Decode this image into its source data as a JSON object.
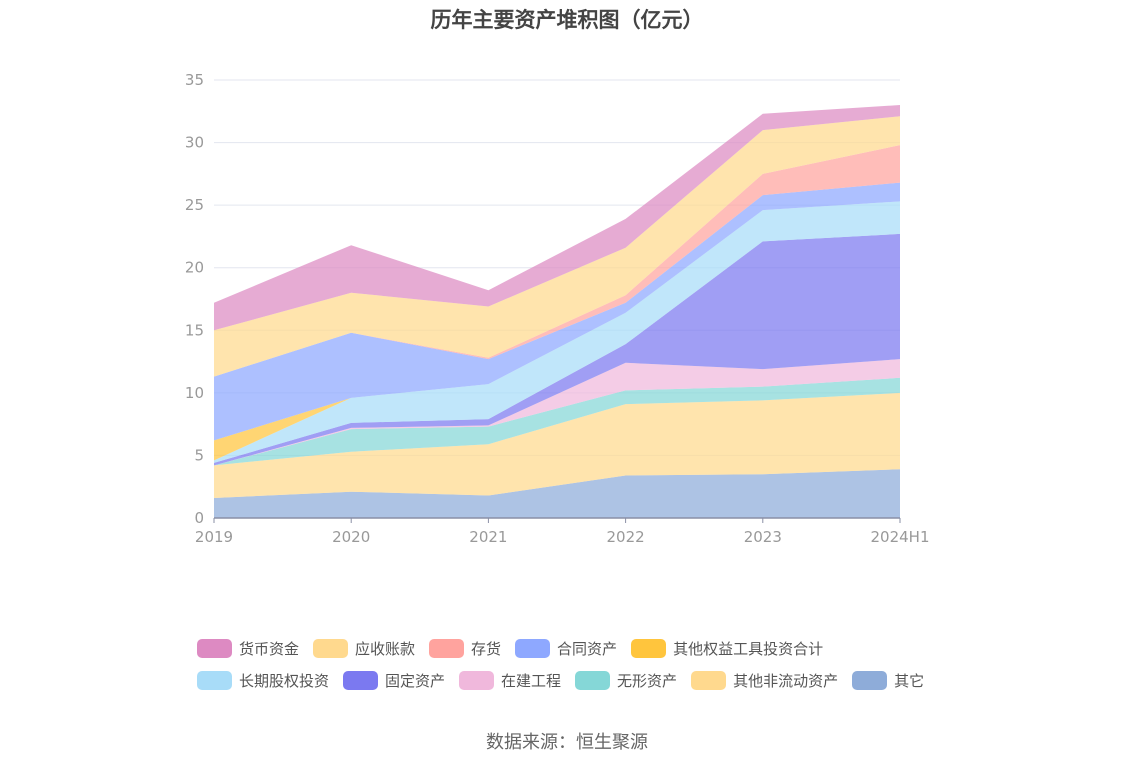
{
  "chart_data": {
    "type": "area",
    "stacked": true,
    "title": "历年主要资产堆积图（亿元）",
    "categories": [
      "2019",
      "2020",
      "2021",
      "2022",
      "2023",
      "2024H1"
    ],
    "ylim": [
      0,
      35
    ],
    "yticks": [
      0,
      5,
      10,
      15,
      20,
      25,
      30,
      35
    ],
    "grid": true,
    "legend_position": "bottom",
    "series": [
      {
        "name": "其它",
        "color": "#8eacd9",
        "values": [
          1.6,
          2.1,
          1.8,
          3.4,
          3.5,
          3.9
        ]
      },
      {
        "name": "其他非流动资产",
        "color": "#ffd98e",
        "values": [
          2.6,
          3.2,
          4.1,
          5.7,
          5.9,
          6.1
        ]
      },
      {
        "name": "无形资产",
        "color": "#85d7d7",
        "values": [
          0.0,
          1.8,
          1.4,
          1.1,
          1.1,
          1.2
        ]
      },
      {
        "name": "在建工程",
        "color": "#f0b8dc",
        "values": [
          0.0,
          0.1,
          0.1,
          2.2,
          1.4,
          1.5
        ]
      },
      {
        "name": "固定资产",
        "color": "#7b79f0",
        "values": [
          0.2,
          0.4,
          0.5,
          1.5,
          10.2,
          10.0
        ]
      },
      {
        "name": "长期股权投资",
        "color": "#a8dcf8",
        "values": [
          0.2,
          2.0,
          2.8,
          2.5,
          2.5,
          2.6
        ]
      },
      {
        "name": "其他权益工具投资合计",
        "color": "#ffc53d",
        "values": [
          1.6,
          0.0,
          0.0,
          0.0,
          0.0,
          0.0
        ]
      },
      {
        "name": "合同资产",
        "color": "#8ea8ff",
        "values": [
          5.1,
          5.2,
          2.0,
          0.8,
          1.2,
          1.5
        ]
      },
      {
        "name": "存货",
        "color": "#ffa39e",
        "values": [
          0.0,
          0.0,
          0.1,
          0.6,
          1.7,
          3.0
        ]
      },
      {
        "name": "应收账款",
        "color": "#ffd98e",
        "values": [
          3.7,
          3.2,
          4.1,
          3.8,
          3.5,
          2.3
        ]
      },
      {
        "name": "货币资金",
        "color": "#dd8ac2",
        "values": [
          2.2,
          3.8,
          1.3,
          2.3,
          1.3,
          0.9
        ]
      }
    ],
    "legend_rows": [
      [
        {
          "name": "货币资金",
          "color": "#dd8ac2"
        },
        {
          "name": "应收账款",
          "color": "#ffd98e"
        },
        {
          "name": "存货",
          "color": "#ffa39e"
        },
        {
          "name": "合同资产",
          "color": "#8ea8ff"
        },
        {
          "name": "其他权益工具投资合计",
          "color": "#ffc53d"
        }
      ],
      [
        {
          "name": "长期股权投资",
          "color": "#a8dcf8"
        },
        {
          "name": "固定资产",
          "color": "#7b79f0"
        },
        {
          "name": "在建工程",
          "color": "#f0b8dc"
        },
        {
          "name": "无形资产",
          "color": "#85d7d7"
        },
        {
          "name": "其他非流动资产",
          "color": "#ffd98e"
        },
        {
          "name": "其它",
          "color": "#8eacd9"
        }
      ]
    ]
  },
  "source": "数据来源：恒生聚源"
}
